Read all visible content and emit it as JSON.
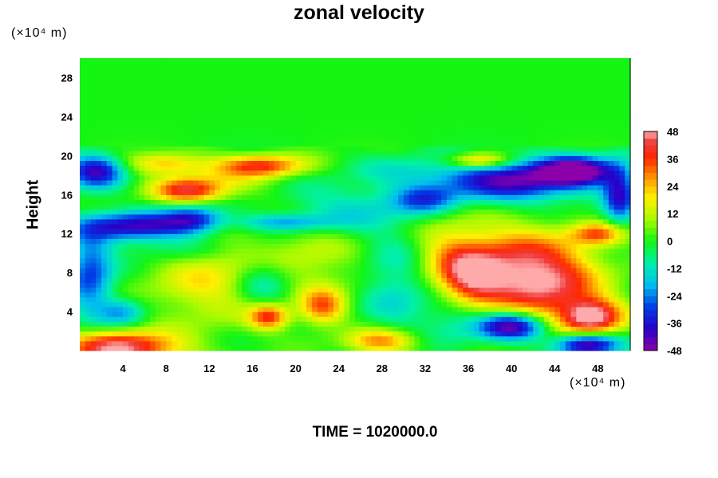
{
  "chart_data": {
    "type": "heatmap",
    "title": "zonal velocity",
    "ylabel": "Height",
    "x_unit": "(×10⁴ m)",
    "y_unit": "(×10⁴ m)",
    "footer": "TIME = 1020000.0",
    "x_ticks": [
      4,
      8,
      12,
      16,
      20,
      24,
      28,
      32,
      36,
      40,
      44,
      48
    ],
    "y_ticks": [
      4,
      8,
      12,
      16,
      20,
      24,
      28
    ],
    "xlim": [
      0,
      51
    ],
    "ylim": [
      0,
      30
    ],
    "colorbar": {
      "min": -48,
      "max": 48,
      "ticks": [
        48,
        36,
        24,
        12,
        0,
        -12,
        -24,
        -36,
        -48
      ]
    },
    "features": [
      {
        "x": 40.5,
        "y": 8.5,
        "value": 42,
        "sx": 4.5,
        "sy": 2.8
      },
      {
        "x": 47.5,
        "y": 3.5,
        "value": 48,
        "sx": 2.0,
        "sy": 1.3
      },
      {
        "x": 3.8,
        "y": 0.3,
        "value": 48,
        "sx": 3.8,
        "sy": 1.2
      },
      {
        "x": 10.0,
        "y": 16.5,
        "value": 38,
        "sx": 2.3,
        "sy": 0.9
      },
      {
        "x": 17.0,
        "y": 19.0,
        "value": 34,
        "sx": 2.8,
        "sy": 0.8
      },
      {
        "x": 37.0,
        "y": 19.5,
        "value": 30,
        "sx": 2.0,
        "sy": 0.6
      },
      {
        "x": 8.0,
        "y": 19.2,
        "value": 24,
        "sx": 2.5,
        "sy": 0.8
      },
      {
        "x": 17.5,
        "y": 3.5,
        "value": 36,
        "sx": 1.3,
        "sy": 0.9
      },
      {
        "x": 22.5,
        "y": 4.5,
        "value": 30,
        "sx": 1.5,
        "sy": 1.3
      },
      {
        "x": 28.0,
        "y": 1.0,
        "value": 30,
        "sx": 2.3,
        "sy": 0.9
      },
      {
        "x": 12.0,
        "y": 7.0,
        "value": 18,
        "sx": 4.0,
        "sy": 3.0
      },
      {
        "x": 21.5,
        "y": 9.5,
        "value": 12,
        "sx": 4.0,
        "sy": 3.0
      },
      {
        "x": 48.0,
        "y": 12.0,
        "value": 28,
        "sx": 1.8,
        "sy": 0.8
      },
      {
        "x": 1.0,
        "y": 8.0,
        "value": -30,
        "sx": 1.5,
        "sy": 3.0
      },
      {
        "x": 5.0,
        "y": 12.8,
        "value": -40,
        "sx": 3.5,
        "sy": 1.0
      },
      {
        "x": 10.5,
        "y": 13.5,
        "value": -32,
        "sx": 2.0,
        "sy": 1.0
      },
      {
        "x": 1.5,
        "y": 18.5,
        "value": -40,
        "sx": 1.8,
        "sy": 1.2
      },
      {
        "x": 40.0,
        "y": 17.5,
        "value": -42,
        "sx": 5.0,
        "sy": 1.5
      },
      {
        "x": 46.0,
        "y": 18.5,
        "value": -46,
        "sx": 2.5,
        "sy": 1.0
      },
      {
        "x": 40.0,
        "y": 2.5,
        "value": -48,
        "sx": 2.2,
        "sy": 1.0
      },
      {
        "x": 47.0,
        "y": 0.7,
        "value": -48,
        "sx": 2.0,
        "sy": 0.8
      },
      {
        "x": 19.0,
        "y": 13.2,
        "value": -20,
        "sx": 3.0,
        "sy": 0.6
      },
      {
        "x": 17.0,
        "y": 7.0,
        "value": -18,
        "sx": 2.0,
        "sy": 2.0
      },
      {
        "x": 29.5,
        "y": 7.0,
        "value": -16,
        "sx": 2.5,
        "sy": 3.5
      },
      {
        "x": 25.0,
        "y": 14.5,
        "value": -14,
        "sx": 5.0,
        "sy": 2.0
      },
      {
        "x": 34.0,
        "y": 10.5,
        "value": 14,
        "sx": 2.5,
        "sy": 2.5
      },
      {
        "x": 44.0,
        "y": 6.0,
        "value": 22,
        "sx": 3.0,
        "sy": 2.5
      },
      {
        "x": 4.0,
        "y": 4.0,
        "value": -20,
        "sx": 1.5,
        "sy": 1.0
      },
      {
        "x": 35.0,
        "y": 4.0,
        "value": -15,
        "sx": 2.0,
        "sy": 2.0
      },
      {
        "x": 8.5,
        "y": 10.5,
        "value": -10,
        "sx": 3.0,
        "sy": 1.0
      },
      {
        "x": 14.0,
        "y": 17.5,
        "value": 10,
        "sx": 3.0,
        "sy": 1.5
      },
      {
        "x": 30.0,
        "y": 18.5,
        "value": -8,
        "sx": 3.0,
        "sy": 1.0
      },
      {
        "x": 32.0,
        "y": 15.5,
        "value": -22,
        "sx": 2.0,
        "sy": 1.0
      },
      {
        "x": 50.0,
        "y": 16.0,
        "value": -34,
        "sx": 1.0,
        "sy": 2.0
      },
      {
        "x": 36.0,
        "y": 7.0,
        "value": 30,
        "sx": 2.0,
        "sy": 2.0
      }
    ],
    "upper_layer": {
      "from_y": 21,
      "value": 0
    }
  }
}
